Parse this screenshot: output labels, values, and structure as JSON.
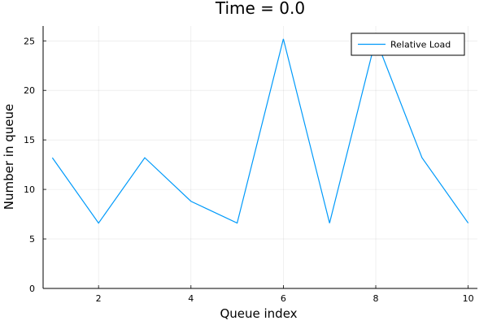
{
  "chart_data": {
    "type": "line",
    "title": "Time = 0.0",
    "xlabel": "Queue index",
    "ylabel": "Number in queue",
    "xlim": [
      0.8,
      10.2
    ],
    "ylim": [
      0,
      26.5
    ],
    "xticks": [
      2,
      4,
      6,
      8,
      10
    ],
    "yticks": [
      0,
      5,
      10,
      15,
      20,
      25
    ],
    "grid": true,
    "legend_position": "top-right",
    "series": [
      {
        "name": "Relative Load",
        "color": "#009AFA",
        "x": [
          1,
          2,
          3,
          4,
          5,
          6,
          7,
          8,
          9,
          10
        ],
        "y": [
          13.2,
          6.6,
          13.2,
          8.8,
          6.6,
          25.2,
          6.6,
          25.2,
          13.2,
          6.6
        ]
      }
    ]
  }
}
